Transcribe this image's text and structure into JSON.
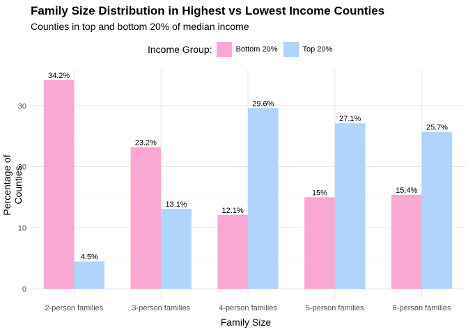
{
  "chart_data": {
    "type": "bar",
    "title": "Family Size Distribution in Highest vs Lowest Income Counties",
    "subtitle": "Counties in top and bottom 20% of median income",
    "xlabel": "Family Size",
    "ylabel": "Percentage of Counties",
    "categories": [
      "2-person families",
      "3-person families",
      "4-person families",
      "5-person families",
      "6-person families"
    ],
    "series": [
      {
        "name": "Bottom 20%",
        "color": "#f9a8d4",
        "values": [
          34.2,
          23.2,
          12.1,
          15,
          15.4
        ],
        "labels": [
          "34.2%",
          "23.2%",
          "12.1%",
          "15%",
          "15.4%"
        ]
      },
      {
        "name": "Top 20%",
        "color": "#b1d4fd",
        "values": [
          4.5,
          13.1,
          29.6,
          27.1,
          25.7
        ],
        "labels": [
          "4.5%",
          "13.1%",
          "29.6%",
          "27.1%",
          "25.7%"
        ]
      }
    ],
    "legend": {
      "title": "Income Group:",
      "position": "top"
    },
    "ylim": [
      -1.7,
      35.9
    ],
    "yticks": [
      0,
      10,
      20,
      30
    ],
    "ytick_labels": [
      "0",
      "10",
      "20",
      "30"
    ],
    "grid": true
  }
}
